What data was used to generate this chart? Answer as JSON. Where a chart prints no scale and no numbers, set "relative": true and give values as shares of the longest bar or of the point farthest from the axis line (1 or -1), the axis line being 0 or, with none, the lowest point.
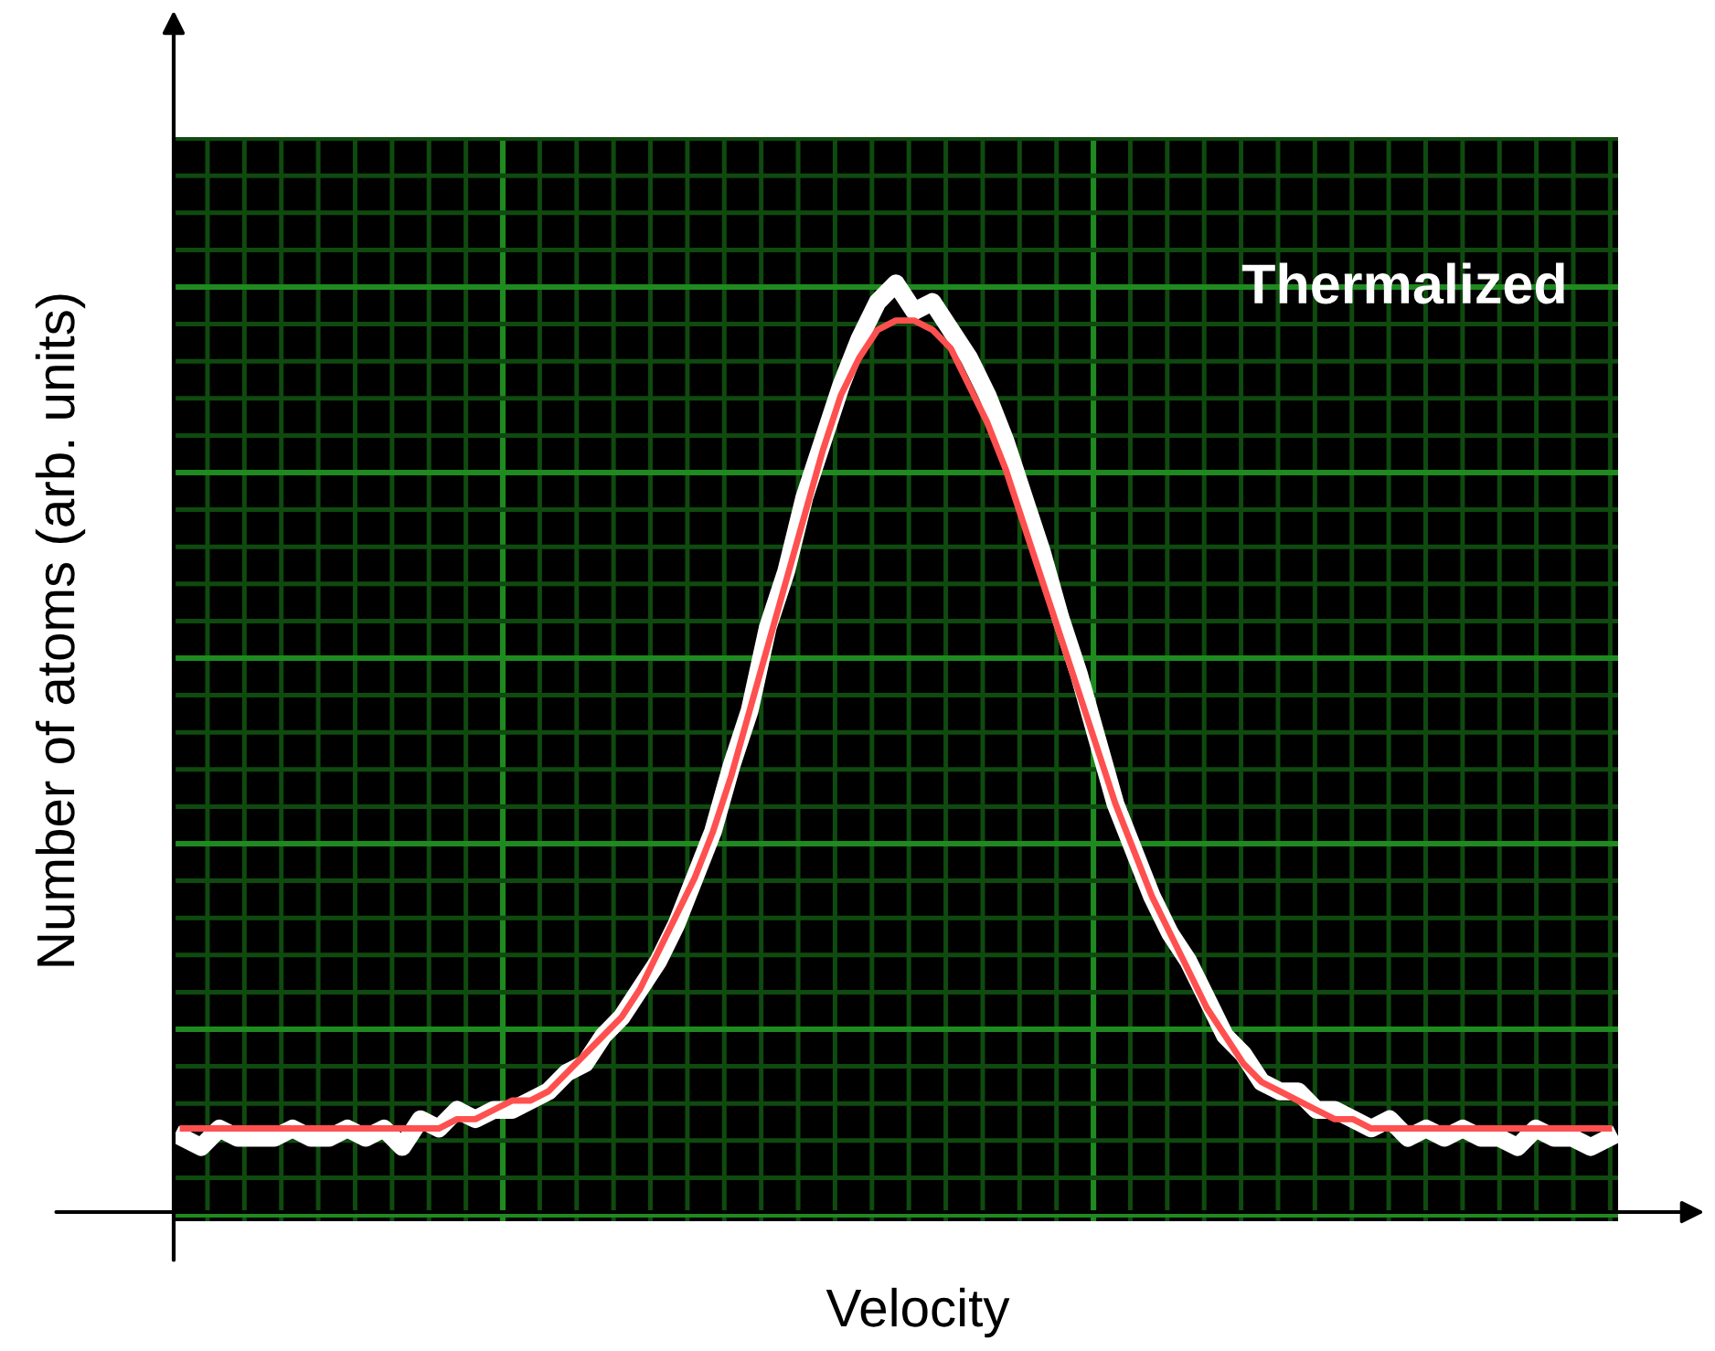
{
  "chart_data": {
    "type": "line",
    "relative": true,
    "xlabel": "Velocity",
    "ylabel": "Number of atoms (arb. units)",
    "annotations": [
      "Thermalized"
    ],
    "grid": true,
    "marker": "none",
    "line_style": "solid",
    "categories": [
      null,
      null,
      null,
      null,
      null,
      null,
      null,
      null,
      null,
      null,
      null,
      null,
      null,
      null,
      null,
      null,
      null,
      null,
      null,
      null,
      null,
      null,
      null,
      null,
      null,
      null,
      null,
      null,
      null,
      null,
      null,
      null,
      null,
      null,
      null,
      null,
      null,
      null,
      null,
      null,
      null,
      null,
      null,
      null,
      null,
      null,
      null,
      null,
      null,
      null,
      null,
      null,
      null,
      null,
      null,
      null,
      null,
      null,
      null,
      null,
      null,
      null,
      null,
      null,
      null,
      null,
      null,
      null,
      null,
      null,
      null,
      null,
      null,
      null,
      null,
      null,
      null,
      null,
      null
    ],
    "series": [
      {
        "color": "#ffffff",
        "values": [
          0.08,
          0.07,
          0.09,
          0.08,
          0.08,
          0.08,
          0.09,
          0.08,
          0.08,
          0.09,
          0.08,
          0.09,
          0.07,
          0.1,
          0.09,
          0.11,
          0.1,
          0.11,
          0.11,
          0.12,
          0.13,
          0.15,
          0.16,
          0.19,
          0.21,
          0.24,
          0.27,
          0.31,
          0.36,
          0.41,
          0.48,
          0.54,
          0.63,
          0.69,
          0.77,
          0.83,
          0.89,
          0.94,
          0.98,
          1.0,
          0.97,
          0.98,
          0.95,
          0.92,
          0.88,
          0.83,
          0.77,
          0.71,
          0.64,
          0.58,
          0.51,
          0.44,
          0.39,
          0.34,
          0.3,
          0.27,
          0.23,
          0.19,
          0.17,
          0.14,
          0.13,
          0.13,
          0.11,
          0.11,
          0.1,
          0.09,
          0.1,
          0.08,
          0.09,
          0.08,
          0.09,
          0.08,
          0.08,
          0.07,
          0.09,
          0.08,
          0.08,
          0.07,
          0.08
        ]
      },
      {
        "color": "#ff5050",
        "values": [
          0.09,
          0.09,
          0.09,
          0.09,
          0.09,
          0.09,
          0.09,
          0.09,
          0.09,
          0.09,
          0.09,
          0.09,
          0.09,
          0.09,
          0.09,
          0.1,
          0.1,
          0.11,
          0.12,
          0.12,
          0.13,
          0.15,
          0.17,
          0.19,
          0.21,
          0.24,
          0.28,
          0.32,
          0.36,
          0.41,
          0.47,
          0.54,
          0.61,
          0.68,
          0.75,
          0.82,
          0.88,
          0.92,
          0.95,
          0.96,
          0.96,
          0.95,
          0.93,
          0.89,
          0.85,
          0.8,
          0.74,
          0.68,
          0.62,
          0.56,
          0.5,
          0.44,
          0.39,
          0.34,
          0.3,
          0.26,
          0.22,
          0.19,
          0.16,
          0.14,
          0.13,
          0.12,
          0.11,
          0.1,
          0.1,
          0.09,
          0.09,
          0.09,
          0.09,
          0.09,
          0.09,
          0.09,
          0.09,
          0.09,
          0.09,
          0.09,
          0.09,
          0.09,
          0.09
        ]
      }
    ]
  }
}
